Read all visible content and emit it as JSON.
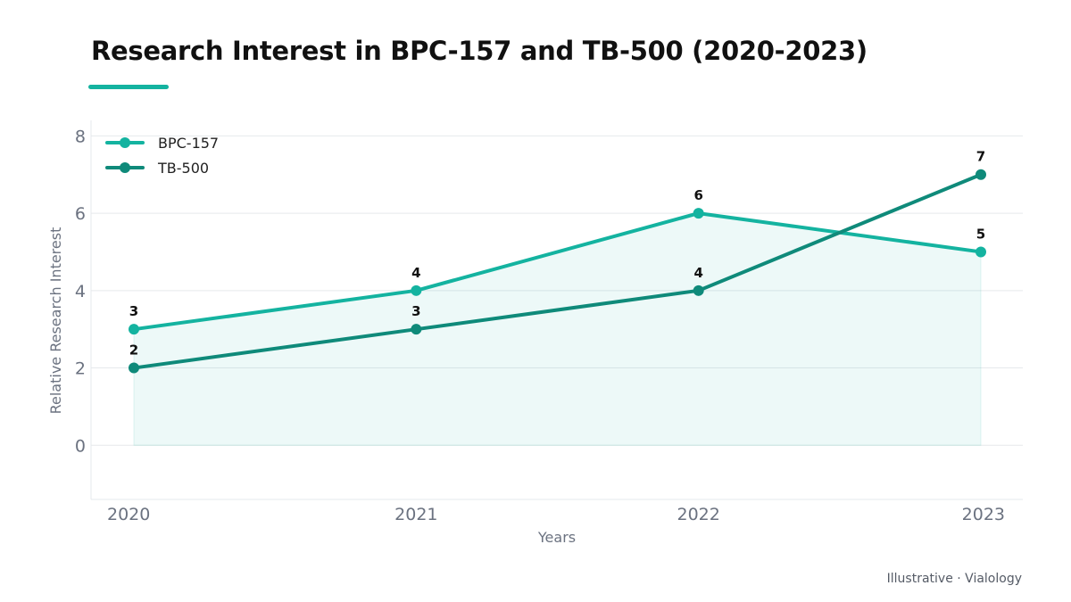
{
  "chart_data": {
    "type": "line",
    "title": "Research Interest in BPC-157 and TB-500 (2020-2023)",
    "xlabel": "Years",
    "ylabel": "Relative Research Interest",
    "categories": [
      "2020",
      "2021",
      "2022",
      "2023"
    ],
    "yticks": [
      0,
      2,
      4,
      6,
      8
    ],
    "ylim": [
      -1.4,
      8.4
    ],
    "grid": true,
    "legend_position": "top-left",
    "series": [
      {
        "name": "BPC-157",
        "values": [
          3,
          4,
          6,
          5
        ],
        "color": "#14b3a0",
        "area_fill": true
      },
      {
        "name": "TB-500",
        "values": [
          2,
          3,
          4,
          7
        ],
        "color": "#0f8a7a",
        "area_fill": false
      }
    ],
    "accent_color": "#14b3a0"
  },
  "footer": {
    "source_note": "Illustrative · Vialology"
  }
}
